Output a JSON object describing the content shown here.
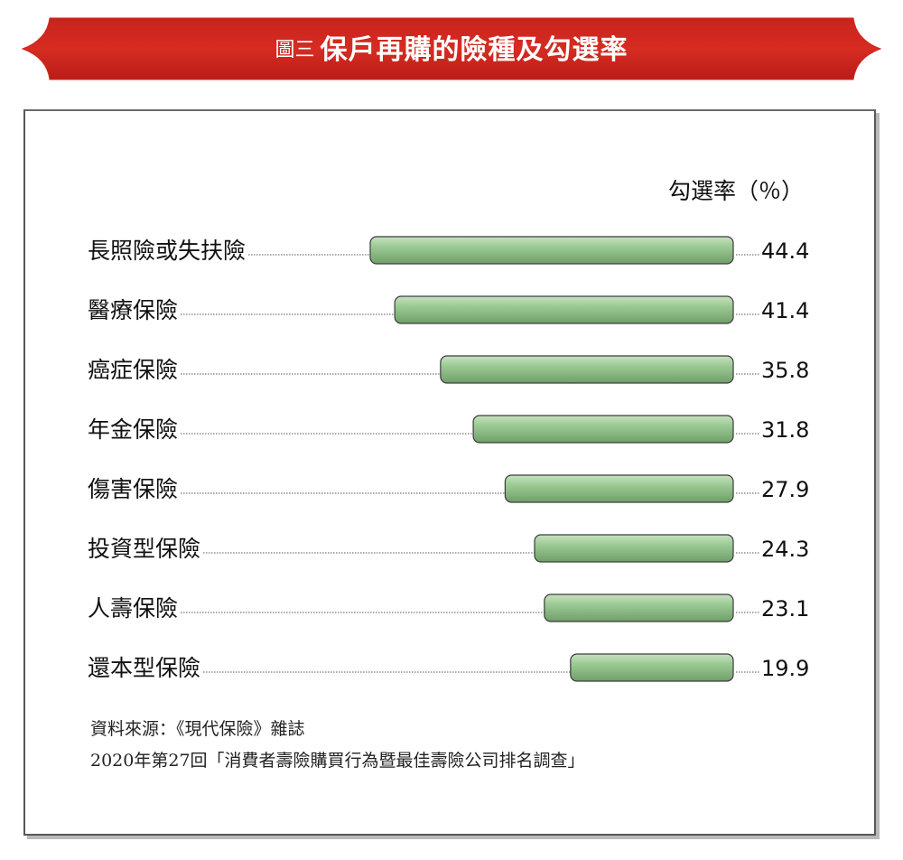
{
  "header": {
    "figure_label": "圖三",
    "title": "保戶再購的險種及勾選率",
    "banner_color": "#d0271f"
  },
  "chart_data": {
    "type": "bar",
    "orientation": "horizontal",
    "value_axis_label": "勾選率（％）",
    "categories": [
      "長照險或失扶險",
      "醫療保險",
      "癌症保險",
      "年金保險",
      "傷害保險",
      "投資型保險",
      "人壽保險",
      "還本型保險"
    ],
    "values": [
      44.4,
      41.4,
      35.8,
      31.8,
      27.9,
      24.3,
      23.1,
      19.9
    ],
    "value_labels": [
      "44.4",
      "41.4",
      "35.8",
      "31.8",
      "27.9",
      "24.3",
      "23.1",
      "19.9"
    ],
    "bar_color": "#8ec187",
    "bar_outline": "#3c3c3c"
  },
  "source": {
    "line1": "資料來源：《現代保險》雜誌",
    "line2": "2020年第27回「消費者壽險購買行為暨最佳壽險公司排名調查」"
  }
}
